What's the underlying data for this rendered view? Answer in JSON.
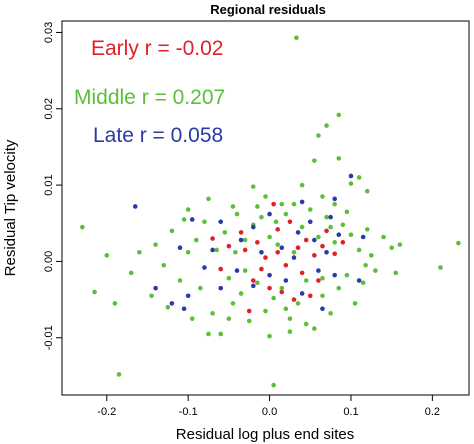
{
  "chart_data": {
    "type": "scatter",
    "title": "Regional residuals",
    "xlabel": "Residual log plus end sites",
    "ylabel": "Residual Tip velocity",
    "xlim": [
      -0.255,
      0.245
    ],
    "ylim": [
      -0.0175,
      0.0315
    ],
    "xticks": [
      -0.2,
      -0.1,
      0.0,
      0.1,
      0.2
    ],
    "xtick_labels": [
      "-0.2",
      "-0.1",
      "0.0",
      "0.1",
      "0.2"
    ],
    "yticks": [
      -0.01,
      0.0,
      0.01,
      0.02,
      0.03
    ],
    "ytick_labels": [
      "-0.01",
      "0.00",
      "0.01",
      "0.02",
      "0.03"
    ],
    "grid": false,
    "annotations": [
      {
        "text": "Early r = -0.02",
        "color": "#e0202a"
      },
      {
        "text": "Middle r = 0.207",
        "color": "#5bbf3a"
      },
      {
        "text": "Late r = 0.058",
        "color": "#2a3aa8"
      }
    ],
    "series": [
      {
        "color": "#e0202a",
        "points": [
          [
            0.005,
            0.0075
          ],
          [
            -0.07,
            0.003
          ],
          [
            -0.05,
            0.002
          ],
          [
            -0.03,
            0.0015
          ],
          [
            -0.015,
            0.0025
          ],
          [
            -0.005,
            0.0005
          ],
          [
            0.01,
            0.0012
          ],
          [
            0.02,
            -0.0005
          ],
          [
            0.035,
            0.0018
          ],
          [
            0.045,
            0.0028
          ],
          [
            0.055,
            0.0008
          ],
          [
            -0.02,
            -0.0025
          ],
          [
            0.0,
            -0.0035
          ],
          [
            0.015,
            -0.004
          ],
          [
            0.03,
            -0.005
          ],
          [
            -0.025,
            -0.0065
          ],
          [
            0.06,
            -0.0025
          ],
          [
            0.08,
            0.001
          ],
          [
            0.07,
            0.004
          ],
          [
            -0.06,
            -0.001
          ],
          [
            0.04,
            -0.0015
          ],
          [
            0.01,
            0.0042
          ],
          [
            0.025,
            0.0052
          ],
          [
            -0.01,
            -0.001
          ],
          [
            0.05,
            -0.0045
          ],
          [
            0.065,
            0.002
          ],
          [
            -0.035,
            0.0038
          ],
          [
            0.09,
            0.0025
          ]
        ]
      },
      {
        "color": "#5bbf3a",
        "points": [
          [
            0.033,
            0.0293
          ],
          [
            0.07,
            0.0178
          ],
          [
            0.085,
            0.0192
          ],
          [
            0.06,
            0.0165
          ],
          [
            0.055,
            0.0132
          ],
          [
            0.085,
            0.0135
          ],
          [
            0.015,
            0.0075
          ],
          [
            0.04,
            0.01
          ],
          [
            0.065,
            0.0085
          ],
          [
            0.11,
            0.011
          ],
          [
            0.1,
            0.0102
          ],
          [
            0.12,
            0.0092
          ],
          [
            0.08,
            0.0075
          ],
          [
            -0.02,
            0.0098
          ],
          [
            -0.1,
            0.0068
          ],
          [
            -0.075,
            0.0082
          ],
          [
            -0.045,
            0.0072
          ],
          [
            -0.23,
            0.0045
          ],
          [
            -0.2,
            0.0008
          ],
          [
            -0.16,
            0.0012
          ],
          [
            -0.17,
            -0.0015
          ],
          [
            -0.215,
            -0.004
          ],
          [
            -0.19,
            -0.0055
          ],
          [
            -0.185,
            -0.0148
          ],
          [
            -0.145,
            -0.0045
          ],
          [
            -0.14,
            0.0022
          ],
          [
            -0.13,
            -0.0005
          ],
          [
            -0.12,
            0.004
          ],
          [
            -0.11,
            -0.0025
          ],
          [
            -0.1,
            0.0012
          ],
          [
            -0.095,
            -0.0075
          ],
          [
            -0.09,
            0.0028
          ],
          [
            -0.085,
            -0.0035
          ],
          [
            -0.08,
            0.0052
          ],
          [
            -0.07,
            -0.0068
          ],
          [
            -0.065,
            0.0015
          ],
          [
            -0.06,
            -0.0095
          ],
          [
            -0.055,
            0.0038
          ],
          [
            -0.05,
            -0.0022
          ],
          [
            -0.045,
            -0.0055
          ],
          [
            -0.04,
            0.0062
          ],
          [
            -0.035,
            -0.0042
          ],
          [
            -0.03,
            0.0028
          ],
          [
            -0.025,
            -0.0078
          ],
          [
            -0.02,
            0.0048
          ],
          [
            -0.015,
            -0.0028
          ],
          [
            -0.01,
            0.0058
          ],
          [
            -0.005,
            -0.0065
          ],
          [
            0.0,
            0.0032
          ],
          [
            0.0,
            -0.0098
          ],
          [
            0.005,
            -0.0162
          ],
          [
            0.01,
            0.0022
          ],
          [
            0.015,
            -0.0035
          ],
          [
            0.02,
            0.0062
          ],
          [
            0.025,
            -0.0075
          ],
          [
            0.03,
            0.0012
          ],
          [
            0.035,
            -0.0055
          ],
          [
            0.04,
            0.0045
          ],
          [
            0.045,
            -0.0025
          ],
          [
            0.05,
            0.0068
          ],
          [
            0.055,
            -0.0088
          ],
          [
            0.06,
            0.0032
          ],
          [
            0.065,
            -0.0045
          ],
          [
            0.07,
            0.0058
          ],
          [
            0.075,
            -0.0068
          ],
          [
            0.08,
            0.0025
          ],
          [
            0.085,
            -0.0035
          ],
          [
            0.09,
            0.0048
          ],
          [
            0.095,
            -0.0018
          ],
          [
            0.1,
            0.0035
          ],
          [
            0.105,
            -0.0055
          ],
          [
            0.11,
            0.0015
          ],
          [
            0.115,
            -0.0028
          ],
          [
            0.12,
            0.0042
          ],
          [
            0.125,
            0.0008
          ],
          [
            0.13,
            -0.0012
          ],
          [
            0.14,
            0.0032
          ],
          [
            0.15,
            0.0018
          ],
          [
            0.16,
            0.0022
          ],
          [
            0.155,
            -0.0015
          ],
          [
            0.21,
            -0.0008
          ],
          [
            0.232,
            0.0024
          ],
          [
            -0.075,
            -0.0095
          ],
          [
            -0.05,
            -0.0075
          ],
          [
            0.025,
            -0.0092
          ],
          [
            0.045,
            -0.0082
          ],
          [
            -0.125,
            -0.006
          ],
          [
            0.03,
            0.0075
          ],
          [
            -0.005,
            0.0085
          ],
          [
            0.075,
            0.0045
          ],
          [
            0.095,
            0.0065
          ],
          [
            -0.105,
            0.0055
          ],
          [
            -0.015,
            0.0072
          ],
          [
            0.005,
            -0.0048
          ],
          [
            0.02,
            -0.0062
          ],
          [
            0.065,
            -0.0022
          ],
          [
            -0.03,
            -0.0012
          ],
          [
            0.008,
            0.0052
          ],
          [
            -0.042,
            0.0012
          ],
          [
            0.118,
            -0.0005
          ]
        ]
      },
      {
        "color": "#2a3aa8",
        "points": [
          [
            -0.165,
            0.0072
          ],
          [
            -0.095,
            0.0055
          ],
          [
            -0.06,
            0.0052
          ],
          [
            -0.02,
            0.0045
          ],
          [
            0.0,
            0.0062
          ],
          [
            0.04,
            0.0078
          ],
          [
            0.08,
            0.0082
          ],
          [
            0.1,
            0.0112
          ],
          [
            0.075,
            0.0058
          ],
          [
            0.05,
            0.0052
          ],
          [
            -0.11,
            0.0018
          ],
          [
            -0.08,
            -0.0008
          ],
          [
            -0.06,
            -0.0035
          ],
          [
            -0.04,
            -0.0012
          ],
          [
            -0.02,
            -0.0032
          ],
          [
            0.0,
            -0.0018
          ],
          [
            0.02,
            -0.0025
          ],
          [
            0.04,
            -0.0042
          ],
          [
            0.06,
            -0.0012
          ],
          [
            0.08,
            -0.0018
          ],
          [
            -0.12,
            -0.0055
          ],
          [
            -0.1,
            -0.0045
          ],
          [
            0.015,
            0.0018
          ],
          [
            0.035,
            0.0038
          ],
          [
            0.055,
            0.0028
          ],
          [
            0.07,
            0.0012
          ],
          [
            -0.035,
            0.0028
          ],
          [
            -0.01,
            0.0012
          ],
          [
            0.085,
            0.0035
          ],
          [
            0.11,
            -0.0025
          ],
          [
            -0.105,
            -0.0062
          ],
          [
            -0.14,
            -0.0035
          ],
          [
            0.065,
            -0.0062
          ],
          [
            0.115,
            0.0032
          ],
          [
            0.03,
            0.0005
          ],
          [
            -0.07,
            0.0015
          ]
        ]
      }
    ]
  }
}
